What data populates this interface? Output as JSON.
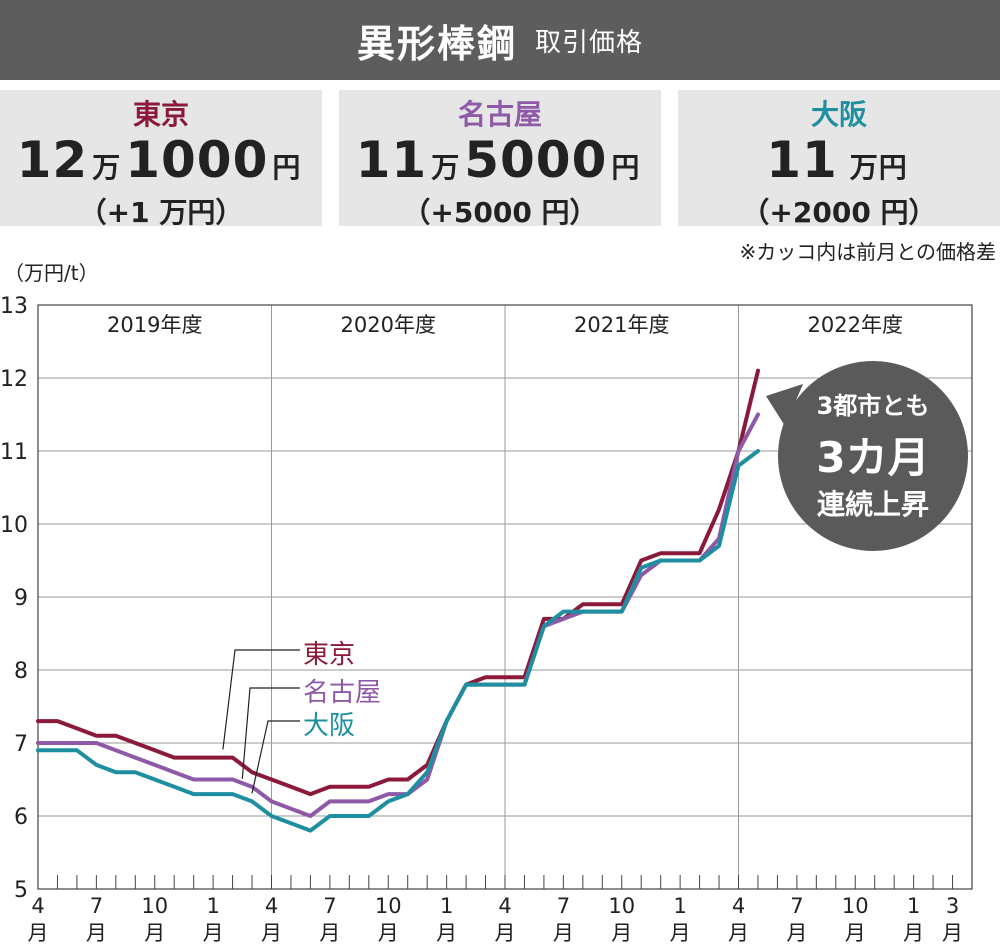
{
  "header": {
    "title": "異形棒鋼",
    "subtitle": "取引価格"
  },
  "prices": [
    {
      "city": "東京",
      "amount_main": "12",
      "amount_unit1": "万",
      "amount_rest": "1000",
      "amount_unit2": "円",
      "diff": "（+1 万円）",
      "color": "#8b1a3a"
    },
    {
      "city": "名古屋",
      "amount_main": "11",
      "amount_unit1": "万",
      "amount_rest": "5000",
      "amount_unit2": "円",
      "diff": "（+5000 円）",
      "color": "#8e5aa8"
    },
    {
      "city": "大阪",
      "amount_main": "11",
      "amount_unit1": "",
      "amount_rest": "",
      "amount_unit2": "万円",
      "diff": "（+2000 円）",
      "color": "#1e8fa0"
    }
  ],
  "note": "※カッコ内は前月との価格差",
  "chart_data": {
    "type": "line",
    "ylabel": "（万円/t）",
    "ylim": [
      5,
      13
    ],
    "yticks": [
      "5",
      "6",
      "7",
      "8",
      "9",
      "10",
      "11",
      "12",
      "13"
    ],
    "x_month_count": 48,
    "x_tick_labels": [
      {
        "index": 0,
        "num": "4",
        "unit": "月"
      },
      {
        "index": 3,
        "num": "7",
        "unit": "月"
      },
      {
        "index": 6,
        "num": "10",
        "unit": "月"
      },
      {
        "index": 9,
        "num": "1",
        "unit": "月"
      },
      {
        "index": 12,
        "num": "4",
        "unit": "月"
      },
      {
        "index": 15,
        "num": "7",
        "unit": "月"
      },
      {
        "index": 18,
        "num": "10",
        "unit": "月"
      },
      {
        "index": 21,
        "num": "1",
        "unit": "月"
      },
      {
        "index": 24,
        "num": "4",
        "unit": "月"
      },
      {
        "index": 27,
        "num": "7",
        "unit": "月"
      },
      {
        "index": 30,
        "num": "10",
        "unit": "月"
      },
      {
        "index": 33,
        "num": "1",
        "unit": "月"
      },
      {
        "index": 36,
        "num": "4",
        "unit": "月"
      },
      {
        "index": 39,
        "num": "7",
        "unit": "月"
      },
      {
        "index": 42,
        "num": "10",
        "unit": "月"
      },
      {
        "index": 45,
        "num": "1",
        "unit": "月"
      },
      {
        "index": 47,
        "num": "3",
        "unit": "月"
      }
    ],
    "fiscal_years": [
      {
        "label": "2019年度",
        "start": 0
      },
      {
        "label": "2020年度",
        "start": 12
      },
      {
        "label": "2021年度",
        "start": 24
      },
      {
        "label": "2022年度",
        "start": 36
      }
    ],
    "series": [
      {
        "name": "東京",
        "color": "#8b1a3a",
        "values": [
          7.3,
          7.3,
          7.2,
          7.1,
          7.1,
          7.0,
          6.9,
          6.8,
          6.8,
          6.8,
          6.8,
          6.6,
          6.5,
          6.4,
          6.3,
          6.4,
          6.4,
          6.4,
          6.5,
          6.5,
          6.7,
          7.3,
          7.8,
          7.9,
          7.9,
          7.9,
          8.7,
          8.7,
          8.9,
          8.9,
          8.9,
          9.5,
          9.6,
          9.6,
          9.6,
          10.2,
          11.0,
          12.1
        ]
      },
      {
        "name": "名古屋",
        "color": "#8e5aa8",
        "values": [
          7.0,
          7.0,
          7.0,
          7.0,
          6.9,
          6.8,
          6.7,
          6.6,
          6.5,
          6.5,
          6.5,
          6.4,
          6.2,
          6.1,
          6.0,
          6.2,
          6.2,
          6.2,
          6.3,
          6.3,
          6.5,
          7.3,
          7.8,
          7.8,
          7.8,
          7.8,
          8.6,
          8.7,
          8.8,
          8.8,
          8.8,
          9.3,
          9.5,
          9.5,
          9.5,
          9.8,
          11.0,
          11.5
        ]
      },
      {
        "name": "大阪",
        "color": "#1e8fa0",
        "values": [
          6.9,
          6.9,
          6.9,
          6.7,
          6.6,
          6.6,
          6.5,
          6.4,
          6.3,
          6.3,
          6.3,
          6.2,
          6.0,
          5.9,
          5.8,
          6.0,
          6.0,
          6.0,
          6.2,
          6.3,
          6.6,
          7.3,
          7.8,
          7.8,
          7.8,
          7.8,
          8.6,
          8.8,
          8.8,
          8.8,
          8.8,
          9.4,
          9.5,
          9.5,
          9.5,
          9.7,
          10.8,
          11.0
        ]
      }
    ],
    "annotation": {
      "line1": "3都市とも",
      "line2": "3カ月",
      "line3": "連続上昇"
    }
  }
}
